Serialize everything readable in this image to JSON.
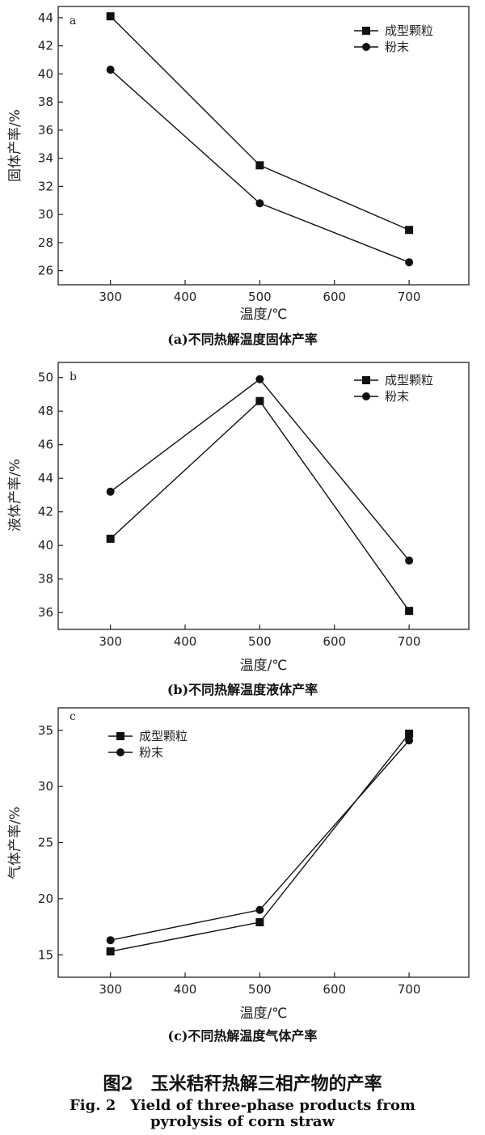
{
  "chart_data": [
    {
      "type": "line",
      "panel_letter": "a",
      "caption": "(a)不同热解温度固体产率",
      "xlabel": "温度/℃",
      "ylabel": "固体产率/%",
      "x": [
        300,
        500,
        700
      ],
      "xticks": [
        300,
        400,
        500,
        600,
        700
      ],
      "xlim": [
        230,
        780
      ],
      "yticks": [
        26,
        28,
        30,
        32,
        34,
        36,
        38,
        40,
        42,
        44
      ],
      "ylim": [
        25,
        44.8
      ],
      "legend_position": "top-right",
      "series": [
        {
          "name": "成型颗粒",
          "marker": "square",
          "values": [
            44.1,
            33.5,
            28.9
          ]
        },
        {
          "name": "粉末",
          "marker": "circle",
          "values": [
            40.3,
            30.8,
            26.6
          ]
        }
      ]
    },
    {
      "type": "line",
      "panel_letter": "b",
      "caption": "(b)不同热解温度液体产率",
      "xlabel": "温度/℃",
      "ylabel": "液体产率/%",
      "x": [
        300,
        500,
        700
      ],
      "xticks": [
        300,
        400,
        500,
        600,
        700
      ],
      "xlim": [
        230,
        780
      ],
      "yticks": [
        36,
        38,
        40,
        42,
        44,
        46,
        48,
        50
      ],
      "ylim": [
        35,
        50.9
      ],
      "legend_position": "top-right",
      "series": [
        {
          "name": "成型颗粒",
          "marker": "square",
          "values": [
            40.4,
            48.6,
            36.1
          ]
        },
        {
          "name": "粉末",
          "marker": "circle",
          "values": [
            43.2,
            49.9,
            39.1
          ]
        }
      ]
    },
    {
      "type": "line",
      "panel_letter": "c",
      "caption": "(c)不同热解温度气体产率",
      "xlabel": "温度/℃",
      "ylabel": "气体产率/%",
      "x": [
        300,
        500,
        700
      ],
      "xticks": [
        300,
        400,
        500,
        600,
        700
      ],
      "xlim": [
        230,
        780
      ],
      "yticks": [
        15,
        20,
        25,
        30,
        35
      ],
      "ylim": [
        13,
        37
      ],
      "legend_position": "top-left",
      "series": [
        {
          "name": "成型颗粒",
          "marker": "square",
          "values": [
            15.3,
            17.9,
            34.7
          ]
        },
        {
          "name": "粉末",
          "marker": "circle",
          "values": [
            16.3,
            19.0,
            34.1
          ]
        }
      ]
    }
  ],
  "figure": {
    "title_cn": "图2　玉米秸秆热解三相产物的产率",
    "title_en_line1": "Fig. 2　Yield of three-phase products from",
    "title_en_line2": "pyrolysis of corn straw"
  }
}
